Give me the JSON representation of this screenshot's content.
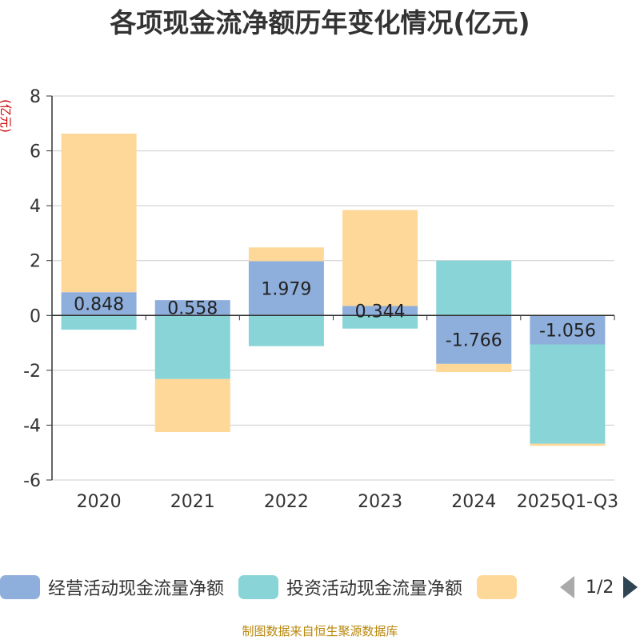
{
  "title": "各项现金流净额历年变化情况(亿元)",
  "unit_label": "(亿元)",
  "source": "制图数据来自恒生聚源数据库",
  "pager": {
    "text": "1/2"
  },
  "chart_data": {
    "type": "bar",
    "stacked": true,
    "categories": [
      "2020",
      "2021",
      "2022",
      "2023",
      "2024",
      "2025Q1-Q3"
    ],
    "ylim": [
      -6,
      8
    ],
    "yticks": [
      8,
      6,
      4,
      2,
      0,
      -2,
      -4,
      -6
    ],
    "grid": true,
    "series": [
      {
        "name": "经营活动现金流量净额",
        "color": "#8eaedb",
        "values": [
          0.848,
          0.558,
          1.979,
          0.344,
          -1.766,
          -1.056
        ],
        "labels": [
          "0.848",
          "0.558",
          "1.979",
          "0.344",
          "-1.766",
          "-1.056"
        ]
      },
      {
        "name": "投资活动现金流量净额",
        "color": "#88d4d6",
        "values": [
          -0.52,
          -2.32,
          -1.12,
          -0.48,
          2.0,
          -3.62
        ],
        "labels": []
      },
      {
        "name": "",
        "color": "#fed899",
        "values": [
          5.78,
          -1.93,
          0.5,
          3.5,
          -0.3,
          -0.08
        ],
        "labels": []
      }
    ]
  }
}
